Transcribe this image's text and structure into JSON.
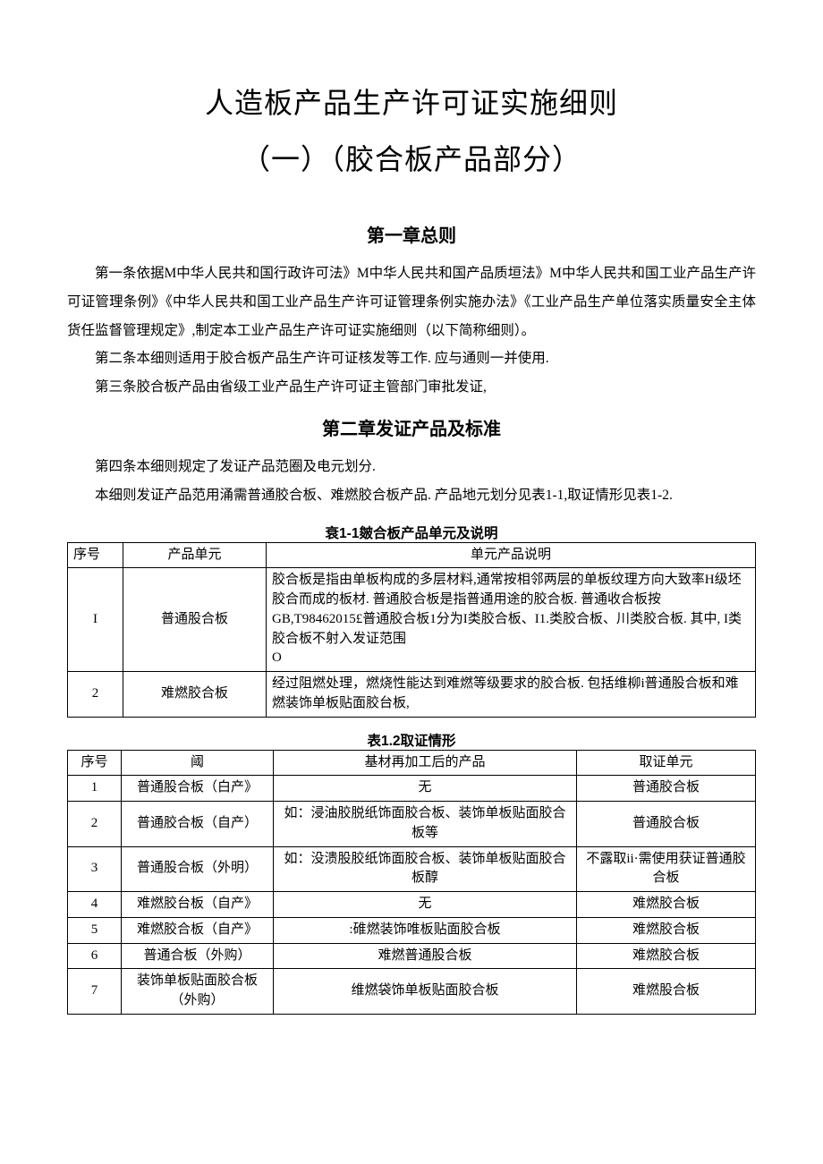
{
  "colors": {
    "bg": "#ffffff",
    "text": "#000000",
    "border": "#000000"
  },
  "title_main": "人造板产品生产许可证实施细则",
  "title_sub": "（一）（胶合板产品部分）",
  "chapter1": "第一章总则",
  "p1": "第一条依据M中华人民共和国行政许可法》M中华人民共和国产品质垣法》M中华人民共和国工业产品生产许可证管理条例》《中华人民共和国工业产品生产许可证管理条例实施办法》《工业产品生产单位落实质量安全主体货任监督管理规定》,制定本工业产品生产许可证实施细则（以下简称细则）。",
  "p2": "第二条本细则适用于胶合板产品生产许可证核发等工作. 应与通则一并使用.",
  "p3": "第三条胶合板产品由省级工业产品生产许可证主管部门审批发证,",
  "chapter2": "第二章发证产品及标准",
  "p4": "第四条本细则规定了发证产品范圈及电元划分.",
  "p5": "本细则发证产品范用涌需普通胶合板、难燃胶合板产品. 产品地元划分见表1-1,取证情形见表1-2.",
  "table1": {
    "caption": "衰1-1皴合板产品单元及说明",
    "headers": [
      "序号",
      "产品单元",
      "单元产品说明"
    ],
    "rows": [
      {
        "n": "I",
        "unit": "普通股合板",
        "desc": "胶合板是指由单板构成的多层材料,通常按相邻两层的单板纹理方向大致率H级坯胶合而成的板材. 普通胶合板是指普通用途的胶合板. 普通收合板按GB,T98462015£普通胶合板1分为I类胶合板、I1.类胶合板、川类胶合板. 其中, I类胶合板不射入发证范围\nO"
      },
      {
        "n": "2",
        "unit": "难燃胶合板",
        "desc": "经过阻燃处理，燃烧性能达到难燃等级要求的胶合板. 包括维柳i普通股合板和难燃装饰单板贴面胶台板,"
      }
    ]
  },
  "table2": {
    "caption": "表1.2取证情形",
    "headers": [
      "序号",
      "阈",
      "基材再加工后的产品",
      "取证单元"
    ],
    "rows": [
      {
        "n": "1",
        "c1": "普通股合板（白产》",
        "c2": "无",
        "c3": "普通胶合板"
      },
      {
        "n": "2",
        "c1": "普通胶合板（自产）",
        "c2": "如：浸油胶脱纸饰面胶合板、装饰单板贴面胶合板等",
        "c3": "普通胶合板"
      },
      {
        "n": "3",
        "c1": "普通股合板（外明）",
        "c2": "如：没溃股胶纸饰面胶合板、装饰单板贴面胶合板醇",
        "c3": "不露取ii·需使用获证普通胶合板"
      },
      {
        "n": "4",
        "c1": "难燃胶台板（自产》",
        "c2": "无",
        "c3": "难燃胶合板"
      },
      {
        "n": "5",
        "c1": "难燃胶合板（自产》",
        "c2": ":碓燃装饰唯板贴面胶合板",
        "c3": "难燃胶合板"
      },
      {
        "n": "6",
        "c1": "普通合板（外购）",
        "c2": "难燃普通股合板",
        "c3": "难燃胶合板"
      },
      {
        "n": "7",
        "c1": "装饰单板贴面胶合板（外购）",
        "c2": "维燃袋饰单板贴面胶合板",
        "c3": "难燃股合板"
      }
    ]
  }
}
